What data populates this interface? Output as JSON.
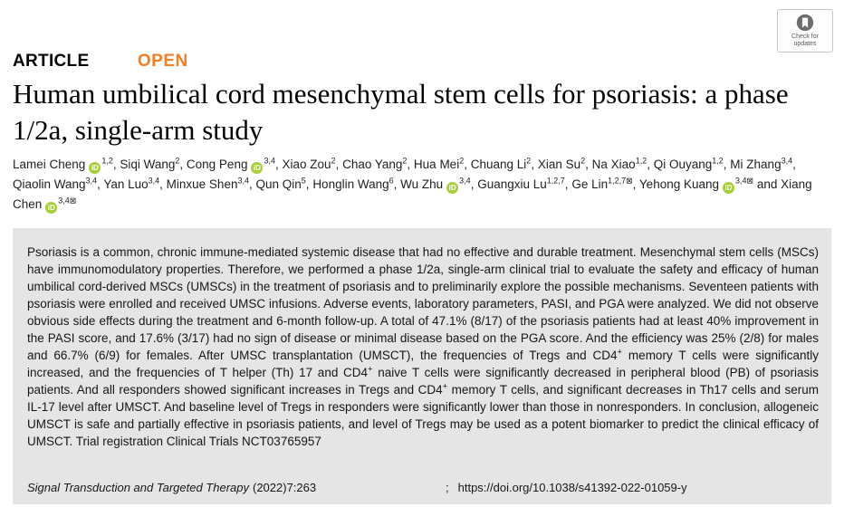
{
  "badge": {
    "label": "Check for updates"
  },
  "header": {
    "article_label": "ARTICLE",
    "open_label": "OPEN"
  },
  "title": "Human umbilical cord mesenchymal stem cells for psoriasis: a phase 1/2a, single-arm study",
  "authors_conjunction": "and",
  "orcid_label": "iD",
  "envelope_glyph": "⊠",
  "authors": [
    {
      "name": "Lamei Cheng",
      "orcid": true,
      "sup": "1,2",
      "corresponding": false
    },
    {
      "name": "Siqi Wang",
      "orcid": false,
      "sup": "2",
      "corresponding": false
    },
    {
      "name": "Cong Peng",
      "orcid": true,
      "sup": "3,4",
      "corresponding": false
    },
    {
      "name": "Xiao Zou",
      "orcid": false,
      "sup": "2",
      "corresponding": false
    },
    {
      "name": "Chao Yang",
      "orcid": false,
      "sup": "2",
      "corresponding": false
    },
    {
      "name": "Hua Mei",
      "orcid": false,
      "sup": "2",
      "corresponding": false
    },
    {
      "name": "Chuang Li",
      "orcid": false,
      "sup": "2",
      "corresponding": false
    },
    {
      "name": "Xian Su",
      "orcid": false,
      "sup": "2",
      "corresponding": false
    },
    {
      "name": "Na Xiao",
      "orcid": false,
      "sup": "1,2",
      "corresponding": false
    },
    {
      "name": "Qi Ouyang",
      "orcid": false,
      "sup": "1,2",
      "corresponding": false
    },
    {
      "name": "Mi Zhang",
      "orcid": false,
      "sup": "3,4",
      "corresponding": false
    },
    {
      "name": "Qiaolin Wang",
      "orcid": false,
      "sup": "3,4",
      "corresponding": false
    },
    {
      "name": "Yan Luo",
      "orcid": false,
      "sup": "3,4",
      "corresponding": false
    },
    {
      "name": "Minxue Shen",
      "orcid": false,
      "sup": "3,4",
      "corresponding": false
    },
    {
      "name": "Qun Qin",
      "orcid": false,
      "sup": "5",
      "corresponding": false
    },
    {
      "name": "Honglin Wang",
      "orcid": false,
      "sup": "6",
      "corresponding": false
    },
    {
      "name": "Wu Zhu",
      "orcid": true,
      "sup": "3,4",
      "corresponding": false
    },
    {
      "name": "Guangxiu Lu",
      "orcid": false,
      "sup": "1,2,7",
      "corresponding": false
    },
    {
      "name": "Ge Lin",
      "orcid": false,
      "sup": "1,2,7",
      "corresponding": true
    },
    {
      "name": "Yehong Kuang",
      "orcid": true,
      "sup": "3,4",
      "corresponding": true
    },
    {
      "name": "Xiang Chen",
      "orcid": true,
      "sup": "3,4",
      "corresponding": true
    }
  ],
  "abstract": "Psoriasis is a common, chronic immune-mediated systemic disease that had no effective and durable treatment. Mesenchymal stem cells (MSCs) have immunomodulatory properties. Therefore, we performed a phase 1/2a, single-arm clinical trial to evaluate the safety and efficacy of human umbilical cord-derived MSCs (UMSCs) in the treatment of psoriasis and to preliminarily explore the possible mechanisms. Seventeen patients with psoriasis were enrolled and received UMSC infusions. Adverse events, laboratory parameters, PASI, and PGA were analyzed. We did not observe obvious side effects during the treatment and 6-month follow-up. A total of 47.1% (8/17) of the psoriasis patients had at least 40% improvement in the PASI score, and 17.6% (3/17) had no sign of disease or minimal disease based on the PGA score. And the efficiency was 25% (2/8) for males and 66.7% (6/9) for females. After UMSC transplantation (UMSCT), the frequencies of Tregs and CD4^+^ memory T cells were significantly increased, and the frequencies of T helper (Th) 17 and CD4^+^ naive T cells were significantly decreased in peripheral blood (PB) of psoriasis patients. And all responders showed significant increases in Tregs and CD4^+^ memory T cells, and significant decreases in Th17 cells and serum IL-17 level after UMSCT. And baseline level of Tregs in responders were significantly lower than those in nonresponders. In conclusion, allogeneic UMSCT is safe and partially effective in psoriasis patients, and level of Tregs may be used as a potent biomarker to predict the clinical efficacy of UMSCT. Trial registration Clinical Trials NCT03765957",
  "footer": {
    "journal": "Signal Transduction and Targeted Therapy",
    "citation": "(2022)7:263",
    "separator": ";",
    "doi": "https://doi.org/10.1038/s41392-022-01059-y"
  },
  "colors": {
    "accent_orange": "#f57f22",
    "orcid_green": "#a6ce39",
    "abstract_bg": "#e5e5e5",
    "badge_circle": "#6b6c6e"
  }
}
